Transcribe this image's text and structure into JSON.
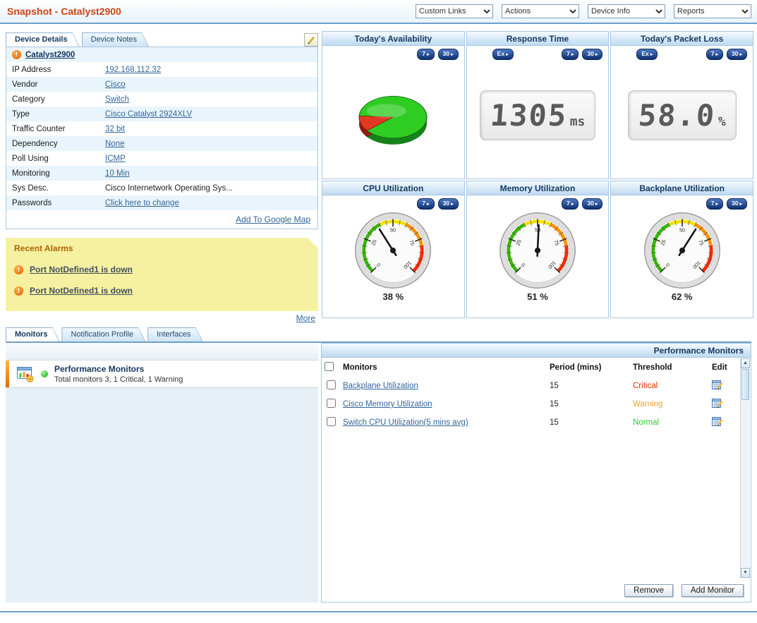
{
  "colors": {
    "title": "#cc4415",
    "navy": "#14365f",
    "link": "#336699",
    "critical": "#e03000",
    "warning": "#f0a030",
    "normal": "#2ecc30",
    "alarm_bg": "#f5f1a1",
    "alarm_title": "#b36200"
  },
  "header": {
    "title": "Snapshot - Catalyst2900",
    "menus": [
      {
        "label": "Custom Links"
      },
      {
        "label": "Actions"
      },
      {
        "label": "Device Info"
      },
      {
        "label": "Reports"
      }
    ]
  },
  "device_panel": {
    "tabs": [
      {
        "label": "Device Details",
        "active": true
      },
      {
        "label": "Device Notes",
        "active": false
      }
    ],
    "device_name": "Catalyst2900",
    "rows": [
      {
        "label": "IP Address",
        "value": "192.168.112.32",
        "link": true
      },
      {
        "label": "Vendor",
        "value": "Cisco",
        "link": true
      },
      {
        "label": "Category",
        "value": "Switch",
        "link": true
      },
      {
        "label": "Type",
        "value": "Cisco Catalyst 2924XLV",
        "link": true
      },
      {
        "label": "Traffic Counter",
        "value": "32 bit",
        "link": true
      },
      {
        "label": "Dependency",
        "value": "None",
        "link": true
      },
      {
        "label": "Poll Using",
        "value": "ICMP",
        "link": true
      },
      {
        "label": "Monitoring",
        "value": "10 Min",
        "link": true
      },
      {
        "label": "Sys Desc.",
        "value": "Cisco Internetwork Operating Sys...",
        "link": false
      },
      {
        "label": "Passwords",
        "value": "Click here to change",
        "link": true
      }
    ],
    "google_map_label": "Add To Google Map"
  },
  "alarms": {
    "title": "Recent Alarms",
    "items": [
      {
        "text": "Port NotDefined1 is down"
      },
      {
        "text": "Port NotDefined1 is down"
      }
    ],
    "more_label": "More"
  },
  "widgets": [
    {
      "title": "Today's Availability",
      "type": "pie",
      "buttons": [
        "7",
        "30"
      ],
      "availability_up_pct": 88,
      "availability_down_pct": 12
    },
    {
      "title": "Response Time",
      "type": "digital",
      "buttons": [
        "Ex",
        "7",
        "30"
      ],
      "value": "1305",
      "unit": "ms"
    },
    {
      "title": "Today's Packet Loss",
      "type": "digital",
      "buttons": [
        "Ex",
        "7",
        "30"
      ],
      "value": "58.0",
      "unit": "%"
    },
    {
      "title": "CPU Utilization",
      "type": "gauge",
      "buttons": [
        "7",
        "30"
      ],
      "value": 38,
      "value_label": "38 %"
    },
    {
      "title": "Memory Utilization",
      "type": "gauge",
      "buttons": [
        "7",
        "30"
      ],
      "value": 51,
      "value_label": "51 %"
    },
    {
      "title": "Backplane Utilization",
      "type": "gauge",
      "buttons": [
        "7",
        "30"
      ],
      "value": 62,
      "value_label": "62 %"
    }
  ],
  "monitors_section": {
    "tabs": [
      {
        "label": "Monitors",
        "active": true
      },
      {
        "label": "Notification Profile",
        "active": false
      },
      {
        "label": "Interfaces",
        "active": false
      }
    ],
    "summary": {
      "title": "Performance Monitors",
      "subtitle": "Total monitors 3, 1 Critical, 1 Warning"
    },
    "table": {
      "panel_title": "Performance Monitors",
      "columns": {
        "monitors": "Monitors",
        "period": "Period (mins)",
        "threshold": "Threshold",
        "edit": "Edit"
      },
      "rows": [
        {
          "name": "Backplane Utilization",
          "period": "15",
          "threshold": "Critical",
          "status": "critical"
        },
        {
          "name": "Cisco Memory Utilization",
          "period": "15",
          "threshold": "Warning",
          "status": "warning"
        },
        {
          "name": "Switch CPU Utilization(5 mins avg)",
          "period": "15",
          "threshold": "Normal",
          "status": "normal"
        }
      ],
      "remove_label": "Remove",
      "add_label": "Add Monitor"
    }
  }
}
